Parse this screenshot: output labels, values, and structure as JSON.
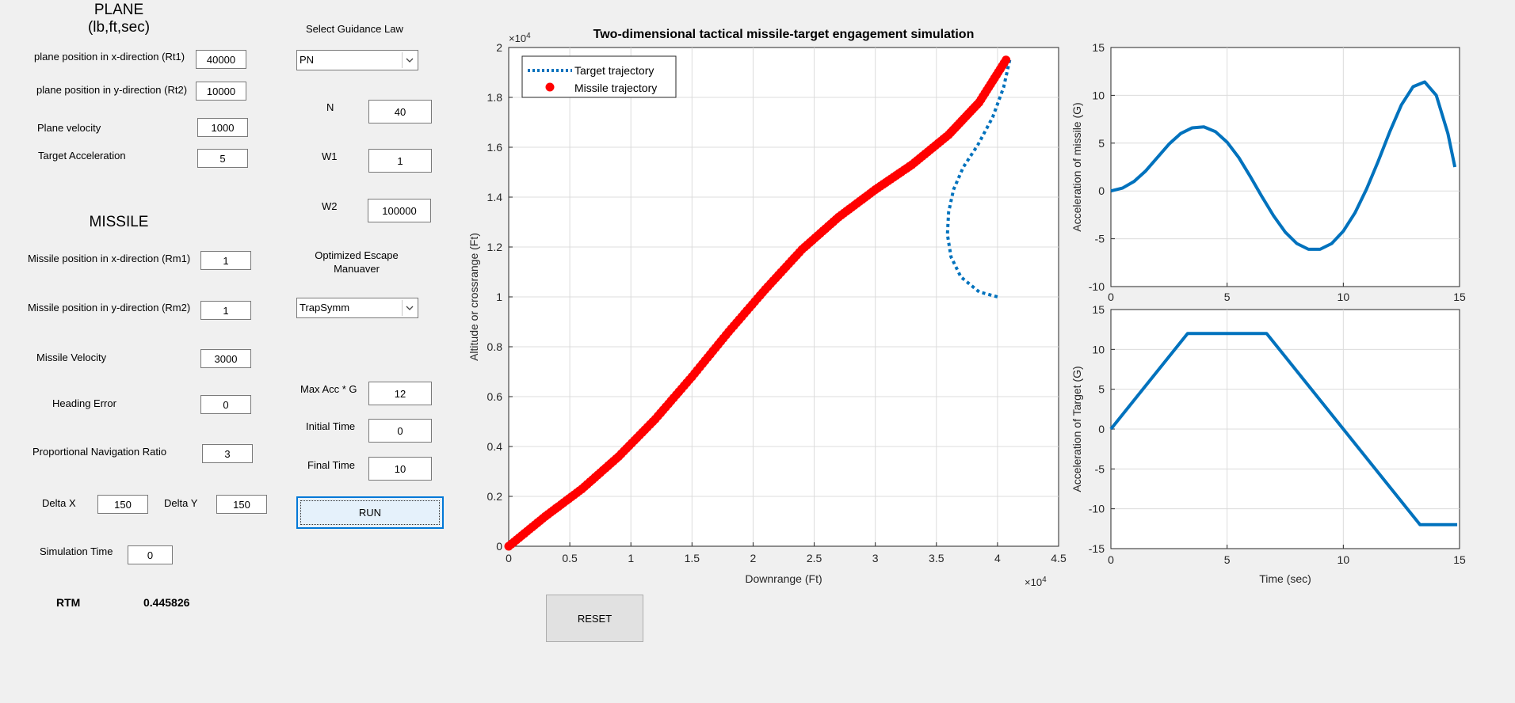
{
  "plane": {
    "title": "PLANE",
    "units": "(lb,ft,sec)",
    "rt1_label": "plane position in x-direction (Rt1)",
    "rt1_value": "40000",
    "rt2_label": "plane position in y-direction (Rt2)",
    "rt2_value": "10000",
    "velocity_label": "Plane velocity",
    "velocity_value": "1000",
    "accel_label": "Target Acceleration",
    "accel_value": "5"
  },
  "missile": {
    "title": "MISSILE",
    "rm1_label": "Missile position in x-direction (Rm1)",
    "rm1_value": "1",
    "rm2_label": "Missile position in y-direction (Rm2)",
    "rm2_value": "1",
    "velocity_label": "Missile Velocity",
    "velocity_value": "3000",
    "heading_label": "Heading Error",
    "heading_value": "0",
    "pnr_label": "Proportional Navigation Ratio",
    "pnr_value": "3",
    "deltax_label": "Delta X",
    "deltax_value": "150",
    "deltay_label": "Delta Y",
    "deltay_value": "150",
    "simtime_label": "Simulation Time",
    "simtime_value": "0",
    "rtm_label": "RTM",
    "rtm_value": "0.445826"
  },
  "guidance": {
    "law_label": "Select Guidance Law",
    "law_value": "PN",
    "n_label": "N",
    "n_value": "40",
    "w1_label": "W1",
    "w1_value": "1",
    "w2_label": "W2",
    "w2_value": "100000",
    "escape_label": "Optimized Escape Manuaver",
    "escape_value": "TrapSymm",
    "maxacc_label": "Max Acc * G",
    "maxacc_value": "12",
    "initial_label": "Initial Time",
    "initial_value": "0",
    "final_label": "Final Time",
    "final_value": "10",
    "run_label": "RUN",
    "reset_label": "RESET"
  },
  "colors": {
    "target": "#0072bd",
    "missile": "#ff0000",
    "panel": "#f0f0f0",
    "run_border": "#0078d7"
  },
  "chart_data": [
    {
      "type": "line",
      "title": "Two-dimensional tactical missile-target engagement simulation",
      "xlabel": "Downrange (Ft)",
      "ylabel": "Altitude or crossrange (Ft)",
      "x_exponent": "×10^4",
      "y_exponent": "×10^4",
      "xlim": [
        0,
        45000
      ],
      "ylim": [
        0,
        20000
      ],
      "xticks": [
        0,
        5000,
        10000,
        15000,
        20000,
        25000,
        30000,
        35000,
        40000,
        45000
      ],
      "xtick_labels": [
        "0",
        "0.5",
        "1",
        "1.5",
        "2",
        "2.5",
        "3",
        "3.5",
        "4",
        "4.5"
      ],
      "yticks": [
        0,
        2000,
        4000,
        6000,
        8000,
        10000,
        12000,
        14000,
        16000,
        18000,
        20000
      ],
      "ytick_labels": [
        "0",
        "0.2",
        "0.4",
        "0.6",
        "0.8",
        "1",
        "1.2",
        "1.4",
        "1.6",
        "1.8",
        "2"
      ],
      "grid": true,
      "legend": "top-left",
      "series": [
        {
          "name": "Target trajectory",
          "style": "dotted",
          "x": [
            40000,
            38500,
            37000,
            36200,
            35900,
            36000,
            36400,
            37200,
            38400,
            39600,
            40500,
            41000
          ],
          "y": [
            10000,
            10200,
            10800,
            11600,
            12500,
            13400,
            14300,
            15200,
            16100,
            17200,
            18400,
            19500
          ]
        },
        {
          "name": "Missile trajectory",
          "style": "markers",
          "x": [
            0,
            3000,
            6000,
            9000,
            12000,
            15000,
            18000,
            21000,
            24000,
            27000,
            30000,
            33000,
            36000,
            38500,
            40700
          ],
          "y": [
            0,
            1200,
            2300,
            3600,
            5100,
            6800,
            8600,
            10300,
            11900,
            13200,
            14300,
            15300,
            16500,
            17800,
            19500
          ]
        }
      ]
    },
    {
      "type": "line",
      "title": "",
      "xlabel": "",
      "ylabel": "Acceleration of missile (G)",
      "xlim": [
        0,
        15
      ],
      "ylim": [
        -10,
        15
      ],
      "xticks": [
        0,
        5,
        10,
        15
      ],
      "yticks": [
        -10,
        -5,
        0,
        5,
        10,
        15
      ],
      "grid": true,
      "series": [
        {
          "name": "",
          "x": [
            0,
            0.5,
            1,
            1.5,
            2,
            2.5,
            3,
            3.5,
            4,
            4.5,
            5,
            5.5,
            6,
            6.5,
            7,
            7.5,
            8,
            8.5,
            9,
            9.5,
            10,
            10.5,
            11,
            11.5,
            12,
            12.5,
            13,
            13.5,
            14,
            14.5,
            14.8
          ],
          "y": [
            0,
            0.3,
            1.0,
            2.1,
            3.5,
            4.9,
            6.0,
            6.6,
            6.7,
            6.2,
            5.1,
            3.5,
            1.5,
            -0.6,
            -2.6,
            -4.3,
            -5.5,
            -6.1,
            -6.1,
            -5.5,
            -4.2,
            -2.3,
            0.2,
            3.1,
            6.2,
            9.0,
            10.9,
            11.4,
            10.0,
            6.0,
            2.5
          ]
        }
      ]
    },
    {
      "type": "line",
      "title": "",
      "xlabel": "Time (sec)",
      "ylabel": "Acceleration of Target (G)",
      "xlim": [
        0,
        15
      ],
      "ylim": [
        -15,
        15
      ],
      "xticks": [
        0,
        5,
        10,
        15
      ],
      "yticks": [
        -15,
        -10,
        -5,
        0,
        5,
        10,
        15
      ],
      "grid": true,
      "series": [
        {
          "name": "",
          "x": [
            0,
            3.3,
            6.7,
            13.3,
            14.9
          ],
          "y": [
            0,
            12,
            12,
            -12,
            -12
          ]
        }
      ]
    }
  ]
}
